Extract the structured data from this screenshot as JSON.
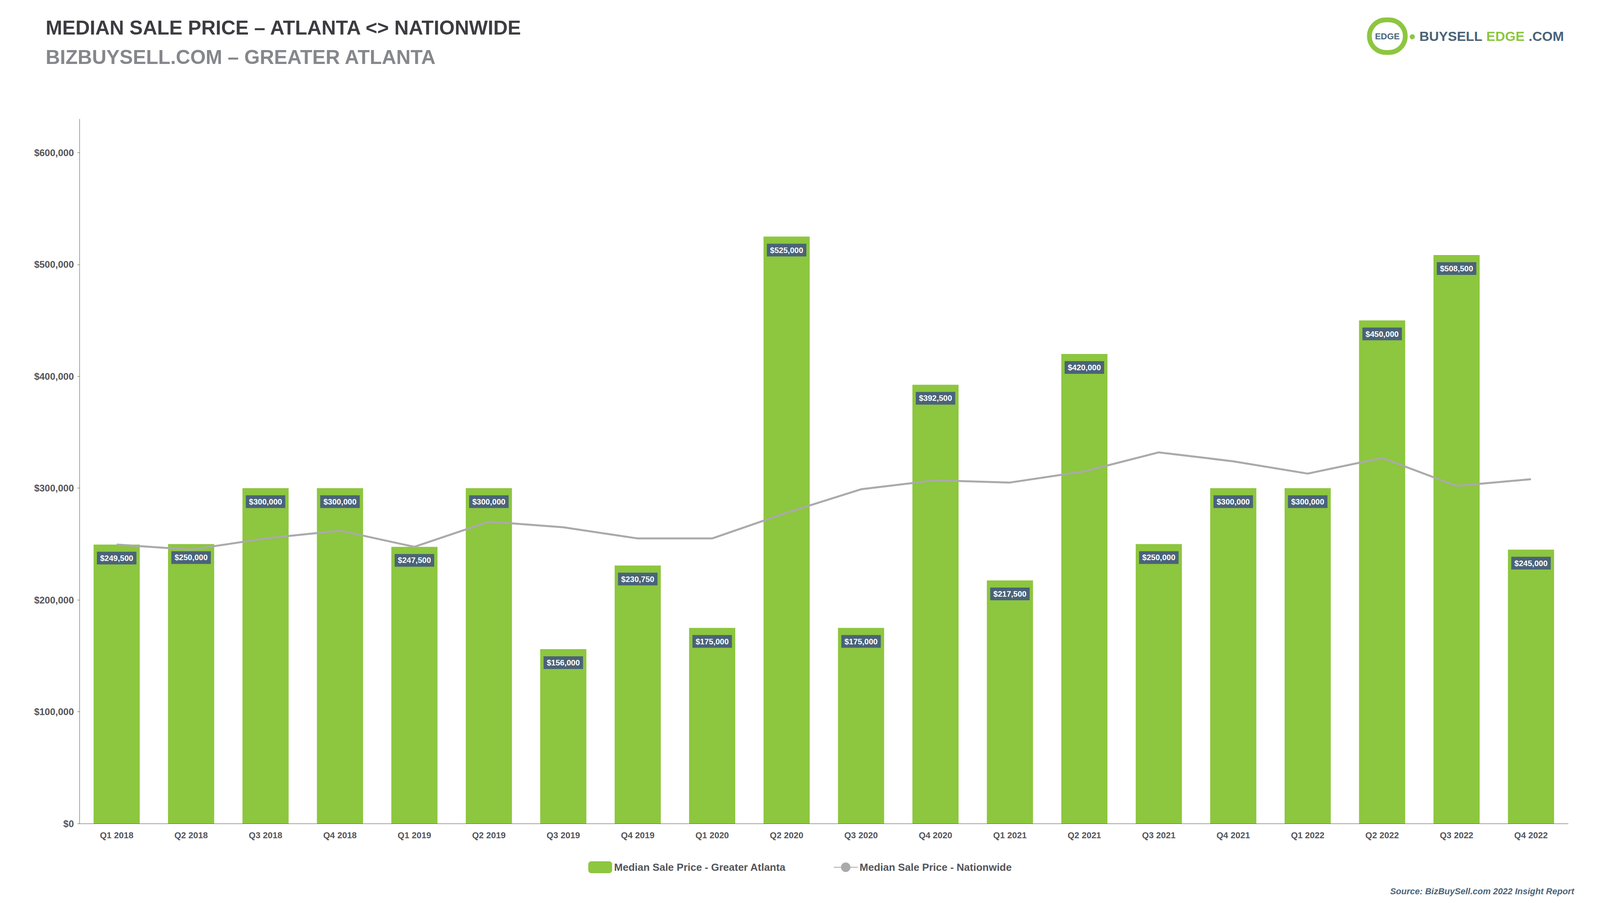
{
  "chart_data": {
    "type": "bar",
    "title": "MEDIAN SALE PRICE – ATLANTA <> NATIONWIDE",
    "subtitle": "BIZBUYSELL.COM – GREATER ATLANTA",
    "categories": [
      "Q1 2018",
      "Q2 2018",
      "Q3 2018",
      "Q4 2018",
      "Q1 2019",
      "Q2 2019",
      "Q3 2019",
      "Q4 2019",
      "Q1 2020",
      "Q2 2020",
      "Q3 2020",
      "Q4 2020",
      "Q1 2021",
      "Q2 2021",
      "Q3 2021",
      "Q4 2021",
      "Q1 2022",
      "Q2 2022",
      "Q3 2022",
      "Q4 2022"
    ],
    "series": [
      {
        "name": "Median Sale Price - Greater Atlanta",
        "type": "bar",
        "color": "#8DC63F",
        "values": [
          249500,
          250000,
          300000,
          300000,
          247500,
          300000,
          156000,
          230750,
          175000,
          525000,
          175000,
          392500,
          217500,
          420000,
          250000,
          300000,
          300000,
          450000,
          508500,
          245000
        ],
        "value_labels": [
          "$249,500",
          "$250,000",
          "$300,000",
          "$300,000",
          "$247,500",
          "$300,000",
          "$156,000",
          "$230,750",
          "$175,000",
          "$525,000",
          "$175,000",
          "$392,500",
          "$217,500",
          "$420,000",
          "$250,000",
          "$300,000",
          "$300,000",
          "$450,000",
          "$508,500",
          "$245,000"
        ]
      },
      {
        "name": "Median Sale Price - Nationwide",
        "type": "line",
        "color": "#AAAAAA",
        "marker": "none",
        "values": [
          249500,
          245000,
          255000,
          262000,
          247500,
          270000,
          265000,
          255000,
          255000,
          278000,
          299000,
          307000,
          305000,
          315000,
          332000,
          324000,
          313000,
          327000,
          302000,
          308000
        ]
      }
    ],
    "ylim": [
      0,
      630000
    ],
    "yticks": [
      {
        "value": 0,
        "label": "$0"
      },
      {
        "value": 100000,
        "label": "$100,000"
      },
      {
        "value": 200000,
        "label": "$200,000"
      },
      {
        "value": 300000,
        "label": "$300,000"
      },
      {
        "value": 400000,
        "label": "$400,000"
      },
      {
        "value": 500000,
        "label": "$500,000"
      },
      {
        "value": 600000,
        "label": "$600,000"
      }
    ],
    "grid": false,
    "legend": "bottom",
    "data_labels": true,
    "annotations": [
      {
        "parts": [
          {
            "text": "EDGE",
            "color": "#4A6378"
          },
          {
            "text": "•",
            "color": "#8DC63F"
          },
          {
            "text": "BUYSELL",
            "color": "#4A6378"
          },
          {
            "text": "EDGE",
            "color": "#8DC63F"
          },
          {
            "text": ".COM",
            "color": "#4A6378"
          }
        ]
      },
      {
        "text": "Source: BizBuySell.com 2022 Insight Report",
        "color": "#4A6378"
      }
    ]
  }
}
